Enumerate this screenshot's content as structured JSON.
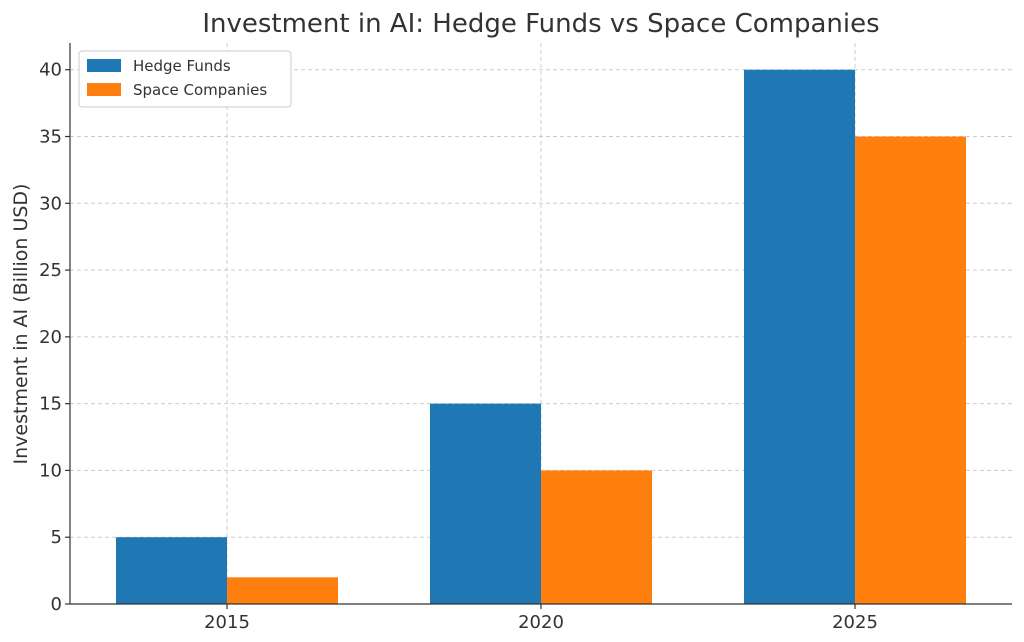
{
  "chart_data": {
    "type": "bar",
    "title": "Investment in AI: Hedge Funds vs Space Companies",
    "xlabel": "",
    "ylabel": "Investment in AI (Billion USD)",
    "categories": [
      "2015",
      "2020",
      "2025"
    ],
    "series": [
      {
        "name": "Hedge Funds",
        "values": [
          5,
          15,
          40
        ],
        "color": "#1f77b4"
      },
      {
        "name": "Space Companies",
        "values": [
          2,
          10,
          35
        ],
        "color": "#ff7f0e"
      }
    ],
    "ylim": [
      0,
      42
    ],
    "yticks": [
      0,
      5,
      10,
      15,
      20,
      25,
      30,
      35,
      40
    ],
    "grid": true,
    "legend_position": "top-left"
  }
}
